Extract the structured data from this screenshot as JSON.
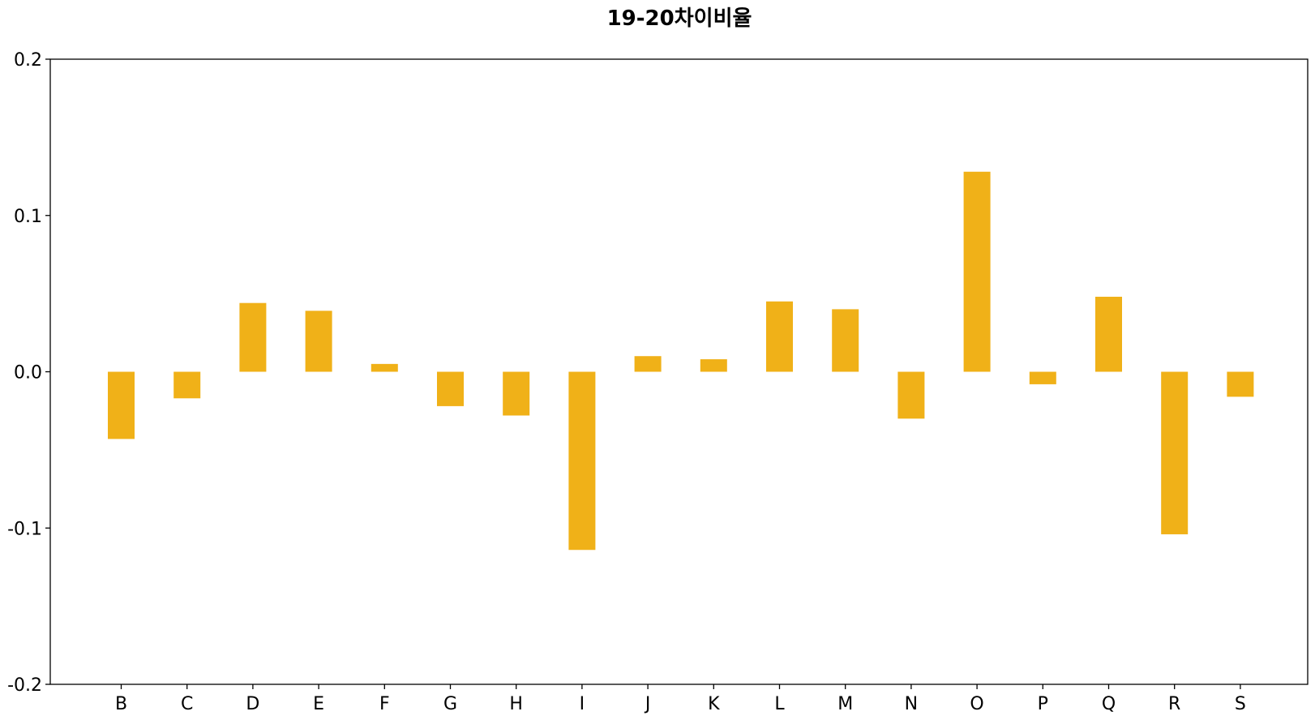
{
  "chart_data": {
    "type": "bar",
    "title": "19-20차이비율",
    "xlabel": "",
    "ylabel": "",
    "categories": [
      "B",
      "C",
      "D",
      "E",
      "F",
      "G",
      "H",
      "I",
      "J",
      "K",
      "L",
      "M",
      "N",
      "O",
      "P",
      "Q",
      "R",
      "S"
    ],
    "values": [
      -0.043,
      -0.017,
      0.044,
      0.039,
      0.005,
      -0.022,
      -0.028,
      -0.114,
      0.01,
      0.008,
      0.045,
      0.04,
      -0.03,
      0.128,
      -0.008,
      0.048,
      -0.104,
      -0.016
    ],
    "ylim": [
      -0.2,
      0.2
    ],
    "yticks": [
      "-0.2",
      "-0.1",
      "0.0",
      "0.1",
      "0.2"
    ],
    "bar_color": "#F0B118",
    "grid": false,
    "legend": "none"
  }
}
